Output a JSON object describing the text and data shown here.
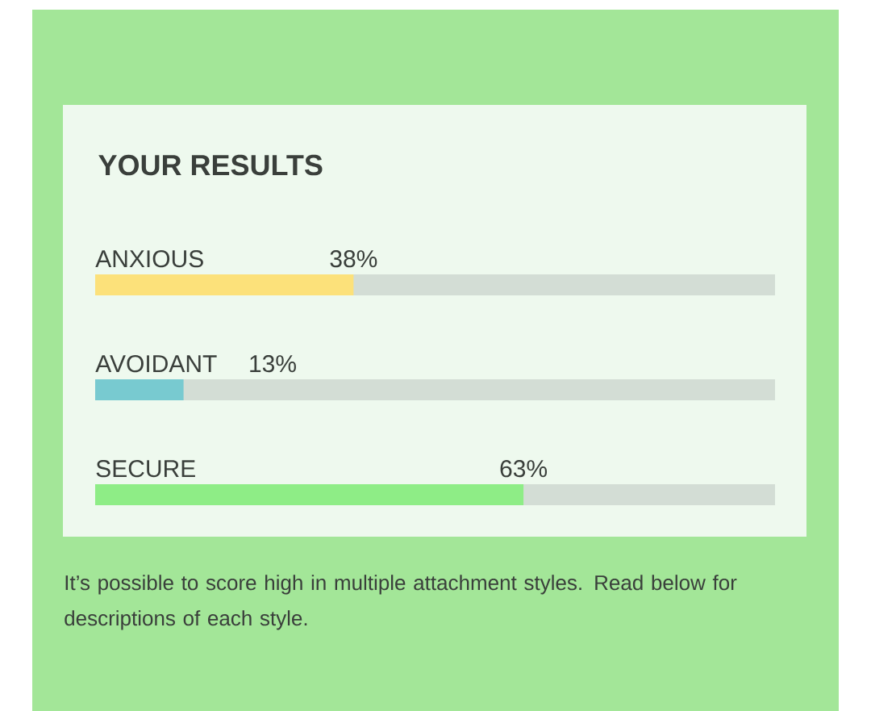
{
  "chart_data": {
    "type": "bar",
    "orientation": "horizontal",
    "title": "YOUR RESULTS",
    "categories": [
      "ANXIOUS",
      "AVOIDANT",
      "SECURE"
    ],
    "values": [
      38,
      13,
      63
    ],
    "colors": [
      "#fce17a",
      "#78cad0",
      "#8eed86"
    ],
    "xlim": [
      0,
      100
    ],
    "value_labels": [
      "38%",
      "13%",
      "63%"
    ],
    "annotations": [
      "It’s possible to score high in multiple attachment styles. Read below for descriptions of each style."
    ]
  }
}
